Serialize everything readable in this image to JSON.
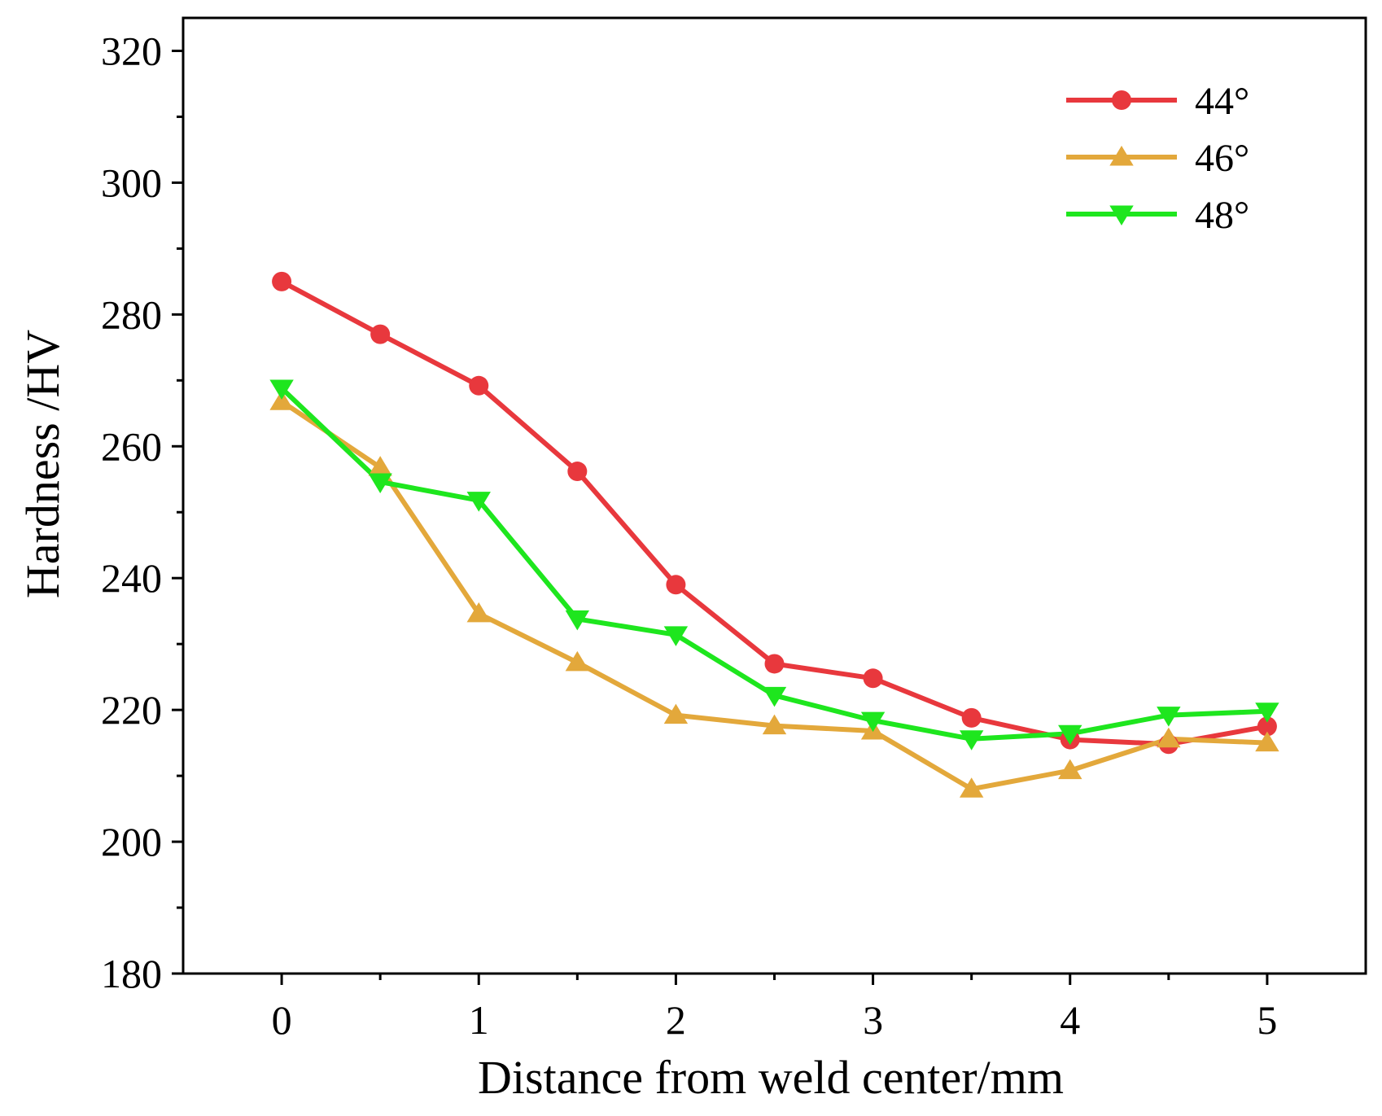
{
  "chart_data": {
    "type": "line",
    "title": "",
    "xlabel": "Distance from weld center/mm",
    "ylabel": "Hardness /HV",
    "xlim": [
      -0.5,
      5.5
    ],
    "ylim": [
      180,
      325
    ],
    "xticks": [
      0,
      1,
      2,
      3,
      4,
      5
    ],
    "xtick_labels": [
      "0",
      "1",
      "2",
      "3",
      "4",
      "5"
    ],
    "xminor": [
      0.5,
      1.5,
      2.5,
      3.5,
      4.5
    ],
    "yticks": [
      180,
      200,
      220,
      240,
      260,
      280,
      300,
      320
    ],
    "ytick_labels": [
      "180",
      "200",
      "220",
      "240",
      "260",
      "280",
      "300",
      "320"
    ],
    "yminor": [
      190,
      210,
      230,
      250,
      270,
      290,
      310
    ],
    "grid": false,
    "legend_position": "top-right",
    "x": [
      0,
      0.5,
      1,
      1.5,
      2,
      2.5,
      3,
      3.5,
      4,
      4.5,
      5
    ],
    "series": [
      {
        "name": "44°",
        "color": "#e8383d",
        "marker": "circle",
        "values": [
          285,
          277,
          269.2,
          256.2,
          239,
          227,
          224.8,
          218.8,
          215.5,
          214.8,
          217.5
        ]
      },
      {
        "name": "46°",
        "color": "#e3a83b",
        "marker": "triangle-up",
        "values": [
          266.8,
          256.8,
          234.6,
          227.2,
          219.2,
          217.6,
          216.8,
          208,
          210.8,
          215.6,
          215
        ]
      },
      {
        "name": "48°",
        "color": "#1ee61e",
        "marker": "triangle-down",
        "values": [
          268.8,
          254.6,
          251.8,
          233.8,
          231.4,
          222.2,
          218.4,
          215.6,
          216.4,
          219.2,
          219.8
        ]
      }
    ]
  }
}
